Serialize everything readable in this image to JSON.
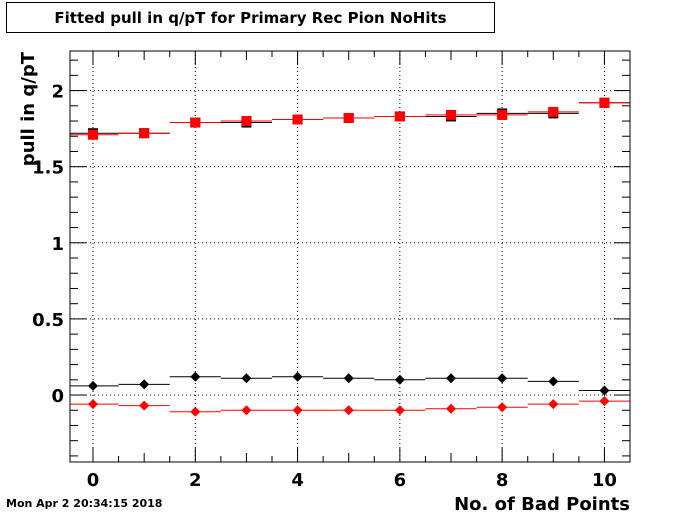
{
  "title": "Fitted pull in q/pT for Primary Rec Pion NoHits",
  "footer": "Mon Apr  2 20:34:15 2018",
  "colors": {
    "black_series": "#000000",
    "red_series": "#ff0000",
    "grid": "#000000"
  },
  "chart_data": {
    "type": "scatter",
    "title": "Fitted pull in q/pT for Primary Rec Pion NoHits",
    "xlabel": "No. of Bad Points",
    "ylabel": "pull in q/pT",
    "xlim": [
      -0.45,
      10.5
    ],
    "ylim": [
      -0.44,
      2.26
    ],
    "xticks": [
      0,
      2,
      4,
      6,
      8,
      10
    ],
    "xtick_labels": [
      "0",
      "2",
      "4",
      "6",
      "8",
      "10"
    ],
    "yticks": [
      0,
      0.5,
      1,
      1.5,
      2
    ],
    "ytick_labels": [
      "0",
      "0.5",
      "1",
      "1.5",
      "2"
    ],
    "grid": true,
    "series": [
      {
        "marker": "square",
        "color": "#000000",
        "x": [
          0,
          1,
          2,
          3,
          4,
          5,
          6,
          7,
          8,
          9,
          10
        ],
        "y": [
          1.72,
          1.72,
          1.79,
          1.79,
          1.81,
          1.82,
          1.83,
          1.83,
          1.85,
          1.85,
          1.92
        ]
      },
      {
        "marker": "square",
        "color": "#ff0000",
        "x": [
          0,
          1,
          2,
          3,
          4,
          5,
          6,
          7,
          8,
          9,
          10
        ],
        "y": [
          1.71,
          1.72,
          1.79,
          1.8,
          1.81,
          1.82,
          1.83,
          1.84,
          1.84,
          1.86,
          1.92
        ]
      },
      {
        "marker": "diamond",
        "color": "#000000",
        "x": [
          0,
          1,
          2,
          3,
          4,
          5,
          6,
          7,
          8,
          9,
          10
        ],
        "y": [
          0.06,
          0.07,
          0.12,
          0.11,
          0.12,
          0.11,
          0.1,
          0.11,
          0.11,
          0.09,
          0.03
        ]
      },
      {
        "marker": "diamond",
        "color": "#ff0000",
        "x": [
          0,
          1,
          2,
          3,
          4,
          5,
          6,
          7,
          8,
          9,
          10
        ],
        "y": [
          -0.06,
          -0.07,
          -0.11,
          -0.1,
          -0.1,
          -0.1,
          -0.1,
          -0.09,
          -0.08,
          -0.06,
          -0.04
        ]
      }
    ]
  }
}
